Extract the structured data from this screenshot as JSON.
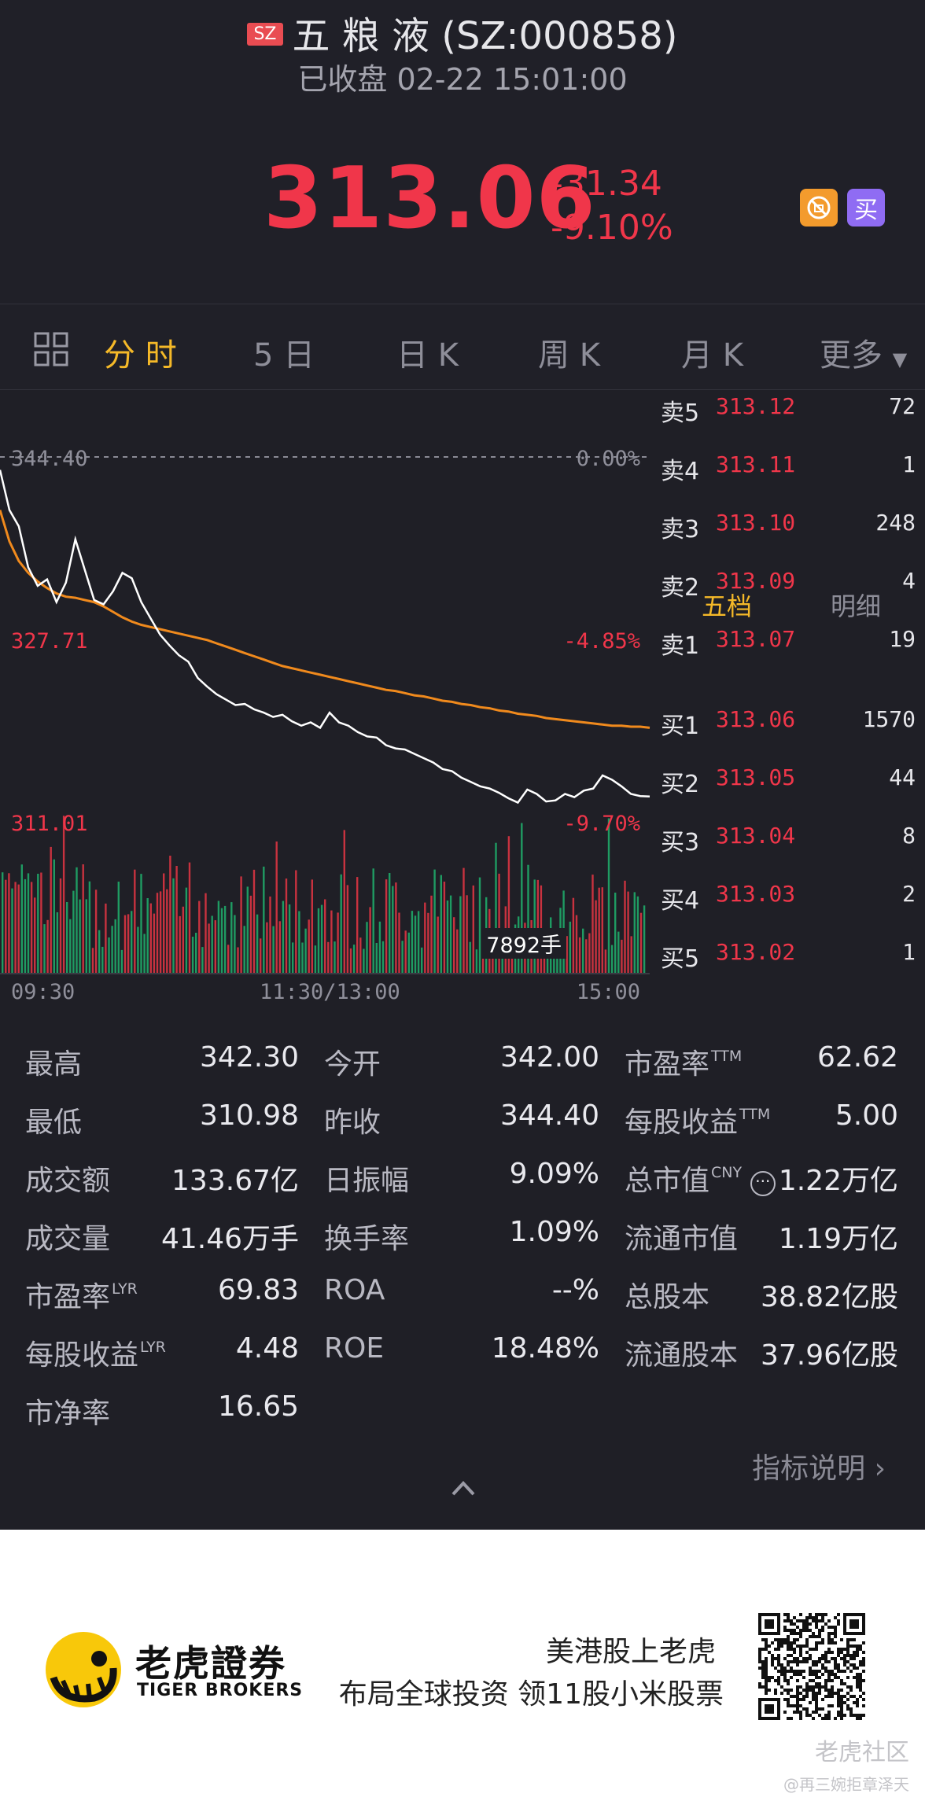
{
  "header": {
    "market_badge": "SZ",
    "title": "五 粮 液 (SZ:000858)",
    "status": "已收盘 02-22 15:01:00",
    "price": "313.06",
    "change": "-31.34",
    "change_pct": "-9.10%",
    "buy_label": "买",
    "colors": {
      "down": "#f0364a",
      "accent": "#f5b928"
    }
  },
  "tabs": [
    {
      "label": "分 时",
      "active": true
    },
    {
      "label": "5 日"
    },
    {
      "label": "日 K"
    },
    {
      "label": "周 K"
    },
    {
      "label": "月 K"
    },
    {
      "label": "更多"
    }
  ],
  "chart_data": {
    "type": "line",
    "y_labels": {
      "top": "344.40",
      "mid": "327.71",
      "low": "311.01"
    },
    "pct_labels": {
      "top": "0.00%",
      "mid": "-4.85%",
      "low": "-9.70%"
    },
    "x_labels": [
      "09:30",
      "11:30/13:00",
      "15:00"
    ],
    "ylim": [
      311.01,
      344.4
    ],
    "prev_close": 344.4,
    "price_series": [
      343.2,
      339.5,
      338.0,
      334.2,
      332.5,
      333.1,
      331.0,
      332.8,
      336.8,
      334.0,
      331.2,
      330.8,
      332.0,
      333.7,
      333.2,
      331.0,
      329.5,
      328.0,
      327.0,
      326.1,
      325.5,
      324.0,
      323.2,
      322.5,
      322.0,
      321.5,
      321.6,
      321.1,
      320.8,
      320.4,
      320.6,
      320.0,
      319.6,
      319.9,
      319.4,
      320.8,
      319.9,
      319.6,
      319.0,
      318.6,
      318.5,
      317.8,
      317.5,
      317.4,
      317.0,
      316.6,
      316.2,
      315.6,
      315.4,
      314.8,
      314.4,
      314.0,
      313.8,
      313.4,
      312.9,
      312.5,
      313.7,
      313.3,
      312.6,
      312.7,
      313.3,
      313.0,
      313.6,
      313.8,
      315.0,
      314.6,
      314.0,
      313.3,
      313.1,
      313.06
    ],
    "avg_series": [
      339.5,
      336.6,
      334.8,
      333.7,
      332.9,
      332.3,
      331.8,
      331.5,
      331.4,
      331.2,
      331.0,
      330.6,
      330.1,
      329.6,
      329.2,
      328.9,
      328.7,
      328.5,
      328.3,
      328.1,
      327.9,
      327.7,
      327.5,
      327.2,
      326.9,
      326.6,
      326.3,
      326.0,
      325.7,
      325.4,
      325.1,
      324.9,
      324.7,
      324.5,
      324.3,
      324.1,
      323.9,
      323.7,
      323.5,
      323.3,
      323.1,
      322.9,
      322.8,
      322.6,
      322.4,
      322.3,
      322.1,
      321.9,
      321.8,
      321.6,
      321.5,
      321.3,
      321.2,
      321.0,
      320.9,
      320.7,
      320.6,
      320.5,
      320.3,
      320.2,
      320.1,
      320.0,
      319.9,
      319.8,
      319.7,
      319.6,
      319.6,
      319.5,
      319.5,
      319.4
    ],
    "volume_label": "7892手"
  },
  "orderbook": {
    "asks": [
      {
        "label": "卖5",
        "price": "313.12",
        "vol": "72"
      },
      {
        "label": "卖4",
        "price": "313.11",
        "vol": "1"
      },
      {
        "label": "卖3",
        "price": "313.10",
        "vol": "248"
      },
      {
        "label": "卖2",
        "price": "313.09",
        "vol": "4"
      },
      {
        "label": "卖1",
        "price": "313.07",
        "vol": "19"
      }
    ],
    "bids": [
      {
        "label": "买1",
        "price": "313.06",
        "vol": "1570"
      },
      {
        "label": "买2",
        "price": "313.05",
        "vol": "44"
      },
      {
        "label": "买3",
        "price": "313.04",
        "vol": "8"
      },
      {
        "label": "买4",
        "price": "313.03",
        "vol": "2"
      },
      {
        "label": "买5",
        "price": "313.02",
        "vol": "1"
      }
    ],
    "tab_five": "五档",
    "tab_detail": "明细"
  },
  "stats": {
    "col1": [
      {
        "k": "最高",
        "v": "342.30"
      },
      {
        "k": "最低",
        "v": "310.98"
      },
      {
        "k": "成交额",
        "v": "133.67亿"
      },
      {
        "k": "成交量",
        "v": "41.46万手"
      },
      {
        "k": "市盈率",
        "sup": "LYR",
        "v": "69.83"
      },
      {
        "k": "每股收益",
        "sup": "LYR",
        "v": "4.48"
      },
      {
        "k": "市净率",
        "v": "16.65"
      }
    ],
    "col2": [
      {
        "k": "今开",
        "v": "342.00"
      },
      {
        "k": "昨收",
        "v": "344.40"
      },
      {
        "k": "日振幅",
        "v": "9.09%"
      },
      {
        "k": "换手率",
        "v": "1.09%"
      },
      {
        "k": "ROA",
        "v": "--%"
      },
      {
        "k": "ROE",
        "v": "18.48%"
      }
    ],
    "col3": [
      {
        "k": "市盈率",
        "sup": "TTM",
        "v": "62.62"
      },
      {
        "k": "每股收益",
        "sup": "TTM",
        "v": "5.00"
      },
      {
        "k": "总市值",
        "sup": "CNY",
        "v": "1.22万亿"
      },
      {
        "k": "流通市值",
        "v": "1.19万亿"
      },
      {
        "k": "总股本",
        "v": "38.82亿股"
      },
      {
        "k": "流通股本",
        "v": "37.96亿股"
      }
    ],
    "indicator_link": "指标说明"
  },
  "banner": {
    "brand_cn": "老虎證券",
    "brand_en": "TIGER BROKERS",
    "slogan1": "美港股上老虎",
    "slogan2": "布局全球投资 领11股小米股票",
    "watermark1": "老虎社区",
    "watermark2": "@再三婉拒章泽天"
  }
}
